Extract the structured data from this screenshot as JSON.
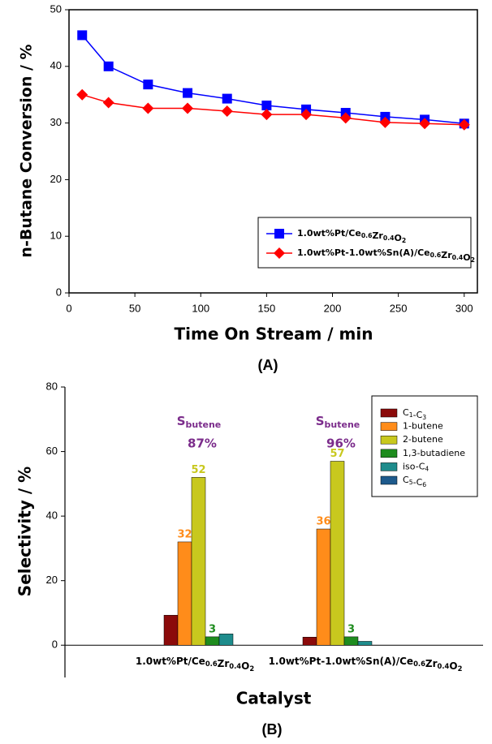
{
  "chart_data": [
    {
      "type": "line",
      "y_label": "n-Butane Conversion / %",
      "x_label": "Time On Stream / min",
      "caption": "(A)",
      "x": [
        10,
        30,
        60,
        90,
        120,
        150,
        180,
        210,
        240,
        270,
        300
      ],
      "xlim": [
        0,
        310
      ],
      "xticks": [
        0,
        50,
        100,
        150,
        200,
        250,
        300
      ],
      "ylim": [
        0,
        50
      ],
      "yticks": [
        0,
        10,
        20,
        30,
        40,
        50
      ],
      "series": [
        {
          "name": "1.0wt%Pt/Ce0.6Zr0.4O2",
          "color": "#0000ff",
          "marker": "square",
          "values": [
            45.5,
            40,
            36.8,
            35.3,
            34.3,
            33.1,
            32.4,
            31.8,
            31.1,
            30.6,
            29.9
          ]
        },
        {
          "name": "1.0wt%Pt-1.0wt%Sn(A)/Ce0.6Zr0.4O2",
          "color": "#ff0000",
          "marker": "diamond",
          "values": [
            35,
            33.6,
            32.6,
            32.6,
            32.1,
            31.5,
            31.5,
            30.9,
            30.1,
            29.9,
            29.7
          ]
        }
      ]
    },
    {
      "type": "bar",
      "y_label": "Selectivity / %",
      "x_label": "Catalyst",
      "caption": "(B)",
      "categories": [
        "1.0wt%Pt/Ce0.6Zr0.4O2",
        "1.0wt%Pt-1.0wt%Sn(A)/Ce0.6Zr0.4O2"
      ],
      "ylim": [
        -10,
        80
      ],
      "yticks": [
        0,
        20,
        40,
        60,
        80
      ],
      "annotations": [
        {
          "label": "S",
          "subscript": "butene",
          "text": "87%"
        },
        {
          "label": "S",
          "subscript": "butene",
          "text": "96%"
        }
      ],
      "series": [
        {
          "name": "C1-C3",
          "color": "#8b0a0a",
          "values": [
            9.3,
            2.5
          ]
        },
        {
          "name": "1-butene",
          "color": "#ff8c1a",
          "values": [
            32,
            36
          ],
          "labeled": true
        },
        {
          "name": "2-butene",
          "color": "#c8c81e",
          "values": [
            52,
            57
          ],
          "labeled": true
        },
        {
          "name": "1,3-butadiene",
          "color": "#1e8c1e",
          "values": [
            2.6,
            2.6
          ],
          "value_labels": [
            "3",
            "3"
          ]
        },
        {
          "name": "iso-C4",
          "color": "#1e8c8c",
          "values": [
            3.5,
            1.2
          ]
        },
        {
          "name": "C5-C6",
          "color": "#1e5a8c",
          "values": [
            0,
            0
          ]
        }
      ]
    }
  ]
}
